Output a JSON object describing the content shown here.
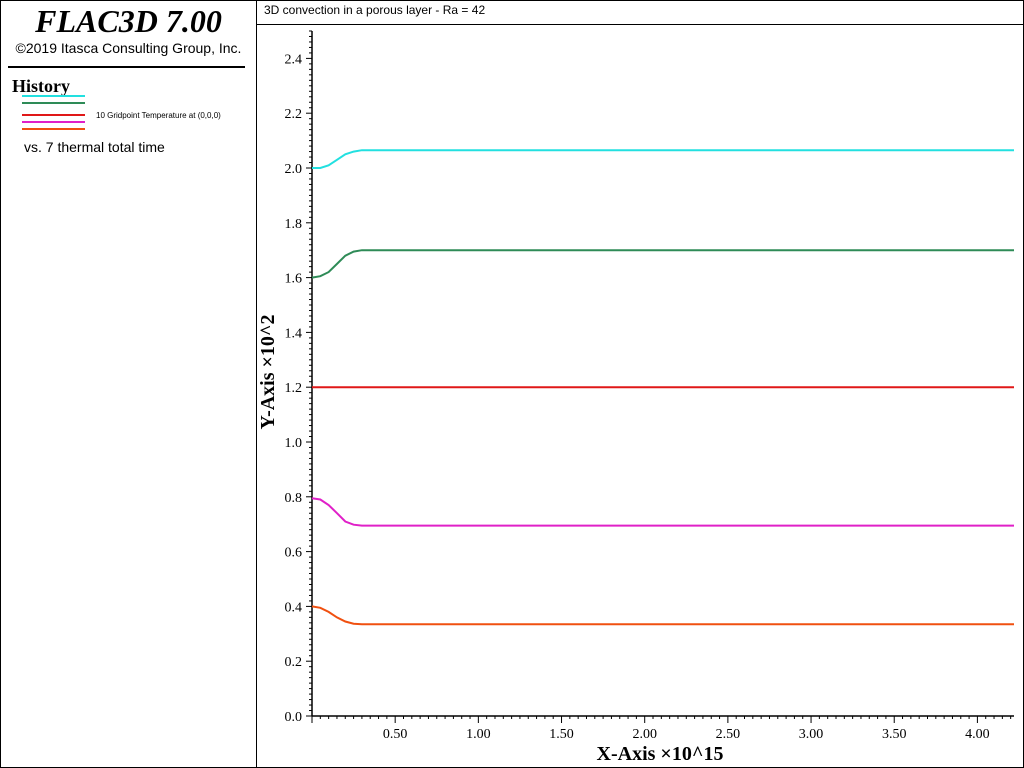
{
  "header": {
    "app_title": "FLAC3D 7.00",
    "copyright": "©2019 Itasca Consulting Group, Inc."
  },
  "legend": {
    "heading": "History",
    "entries": [
      {
        "color": "#22e0e0"
      },
      {
        "color": "#2e8b57"
      },
      {
        "color": "#e01818"
      },
      {
        "color": "#e020c8"
      },
      {
        "color": "#f05010"
      }
    ],
    "history_label": "10 Gridpoint Temperature at (0,0,0)",
    "vs_label": "vs. 7 thermal total time"
  },
  "plot": {
    "title": "3D convection in a porous layer - Ra = 42"
  },
  "chart_data": {
    "type": "line",
    "title": "3D convection in a porous layer - Ra = 42",
    "xlabel": "X-Axis ×10^15",
    "ylabel": "Y-Axis ×10^2",
    "xlim": [
      0.0,
      4.22
    ],
    "ylim": [
      0.0,
      2.5
    ],
    "xticks": [
      0.5,
      1.0,
      1.5,
      2.0,
      2.5,
      3.0,
      3.5,
      4.0
    ],
    "xtick_labels": [
      "0.50",
      "1.00",
      "1.50",
      "2.00",
      "2.50",
      "3.00",
      "3.50",
      "4.00"
    ],
    "yticks": [
      0.0,
      0.2,
      0.4,
      0.6,
      0.8,
      1.0,
      1.2,
      1.4,
      1.6,
      1.8,
      2.0,
      2.2,
      2.4
    ],
    "ytick_labels": [
      "0.0",
      "0.2",
      "0.4",
      "0.6",
      "0.8",
      "1.0",
      "1.2",
      "1.4",
      "1.6",
      "1.8",
      "2.0",
      "2.2",
      "2.4"
    ],
    "grid": false,
    "series": [
      {
        "color": "#22e0e0",
        "x": [
          0.0,
          0.05,
          0.1,
          0.15,
          0.2,
          0.25,
          0.3,
          0.35,
          4.22
        ],
        "y": [
          2.0,
          2.0,
          2.01,
          2.03,
          2.05,
          2.06,
          2.065,
          2.065,
          2.065
        ]
      },
      {
        "color": "#2e8b57",
        "x": [
          0.0,
          0.05,
          0.1,
          0.15,
          0.2,
          0.25,
          0.3,
          0.35,
          4.22
        ],
        "y": [
          1.6,
          1.605,
          1.62,
          1.65,
          1.68,
          1.695,
          1.7,
          1.7,
          1.7
        ]
      },
      {
        "color": "#e01818",
        "x": [
          0.0,
          4.22
        ],
        "y": [
          1.2,
          1.2
        ]
      },
      {
        "color": "#e020c8",
        "x": [
          0.0,
          0.05,
          0.1,
          0.15,
          0.2,
          0.25,
          0.3,
          0.35,
          4.22
        ],
        "y": [
          0.795,
          0.79,
          0.77,
          0.74,
          0.71,
          0.698,
          0.695,
          0.695,
          0.695
        ]
      },
      {
        "color": "#f05010",
        "x": [
          0.0,
          0.05,
          0.1,
          0.15,
          0.2,
          0.25,
          0.3,
          0.35,
          4.22
        ],
        "y": [
          0.4,
          0.395,
          0.38,
          0.36,
          0.345,
          0.337,
          0.335,
          0.335,
          0.335
        ]
      }
    ]
  }
}
